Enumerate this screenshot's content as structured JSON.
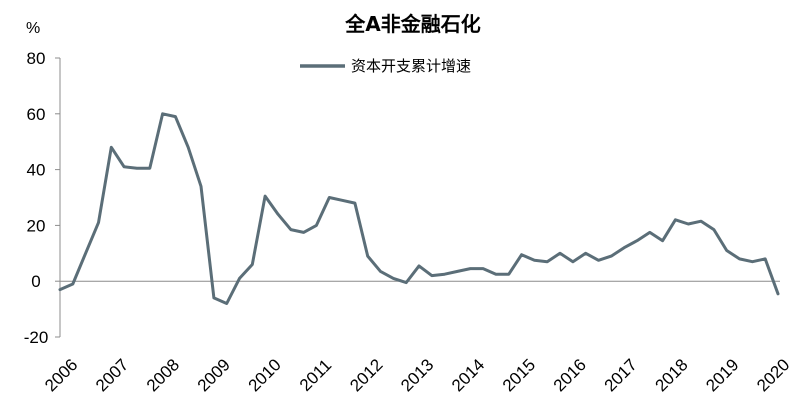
{
  "chart_data": {
    "type": "line",
    "title": "全A非金融石化",
    "ylabel": "%",
    "ylim": [
      -20,
      80
    ],
    "yticks": [
      "80",
      "60",
      "40",
      "20",
      "0",
      "-20"
    ],
    "ytick_values": [
      80,
      60,
      40,
      20,
      0,
      -20
    ],
    "xtick_labels": [
      "2006",
      "2007",
      "2008",
      "2009",
      "2010",
      "2011",
      "2012",
      "2013",
      "2014",
      "2015",
      "2016",
      "2017",
      "2018",
      "2019",
      "2020"
    ],
    "xlim": [
      2006,
      2020
    ],
    "grid": false,
    "legend_position": "top-center",
    "series": [
      {
        "name": "资本开支累计增速",
        "color": "#5b6e78",
        "x": [
          2006.0,
          2006.25,
          2006.5,
          2006.75,
          2007.0,
          2007.25,
          2007.5,
          2007.75,
          2008.0,
          2008.25,
          2008.5,
          2008.75,
          2009.0,
          2009.25,
          2009.5,
          2009.75,
          2010.0,
          2010.25,
          2010.5,
          2010.75,
          2011.0,
          2011.25,
          2011.5,
          2011.75,
          2012.0,
          2012.25,
          2012.5,
          2012.75,
          2013.0,
          2013.25,
          2013.5,
          2013.75,
          2014.0,
          2014.25,
          2014.5,
          2014.75,
          2015.0,
          2015.25,
          2015.5,
          2015.75,
          2016.0,
          2016.25,
          2016.5,
          2016.75,
          2017.0,
          2017.25,
          2017.5,
          2017.75,
          2018.0,
          2018.25,
          2018.5,
          2018.75,
          2019.0,
          2019.25,
          2019.5,
          2019.75,
          2020.0
        ],
        "values": [
          -3,
          -1,
          10,
          21,
          48,
          41,
          40.5,
          40.5,
          60,
          59,
          48,
          34,
          -6,
          -8,
          1,
          6,
          30.5,
          24,
          18.5,
          17.5,
          20,
          30,
          29,
          28,
          9,
          3.5,
          1,
          -0.5,
          5.5,
          2,
          2.5,
          3.5,
          4.5,
          4.5,
          2.5,
          2.5,
          9.5,
          7.5,
          7,
          10,
          7,
          10,
          7.5,
          9,
          12,
          14.5,
          17.5,
          14.5,
          22,
          20.5,
          21.5,
          18.5,
          11,
          8,
          7,
          8,
          -4.5
        ]
      }
    ]
  }
}
